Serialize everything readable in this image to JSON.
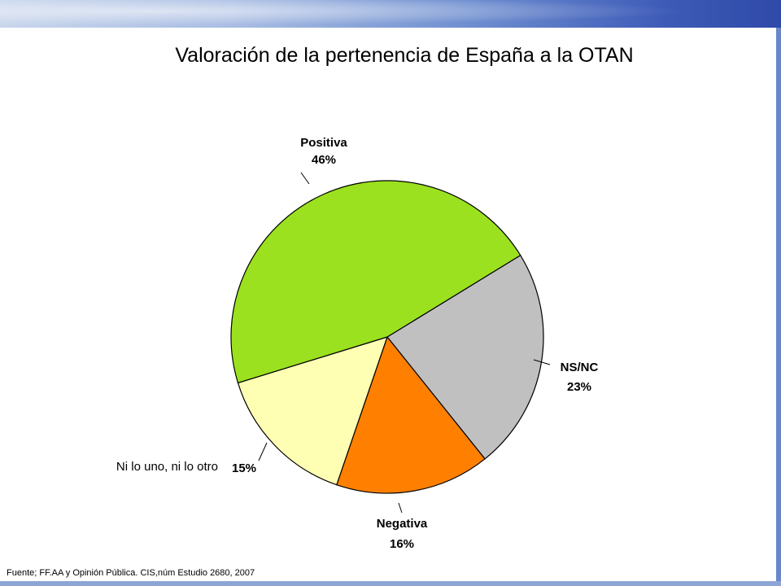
{
  "colors": {
    "positiva": "#9be11f",
    "ns_nc": "#c0c0c0",
    "negativa": "#ff8000",
    "ni_lo_uno": "#ffffb3"
  },
  "chart_data": {
    "type": "pie",
    "title": "Valoración de la pertenencia de España a la OTAN",
    "slices": [
      {
        "label": "Positiva",
        "value": 46,
        "value_label": "46%",
        "color": "#9be11f"
      },
      {
        "label": "NS/NC",
        "value": 23,
        "value_label": "23%",
        "color": "#c0c0c0"
      },
      {
        "label": "Negativa",
        "value": 16,
        "value_label": "16%",
        "color": "#ff8000"
      },
      {
        "label": "Ni lo uno, ni lo otro",
        "value": 15,
        "value_label": "15%",
        "color": "#ffffb3"
      }
    ]
  },
  "source": "Fuente; FF.AA y Opinión Pública. CIS,núm Estudio 2680, 2007"
}
